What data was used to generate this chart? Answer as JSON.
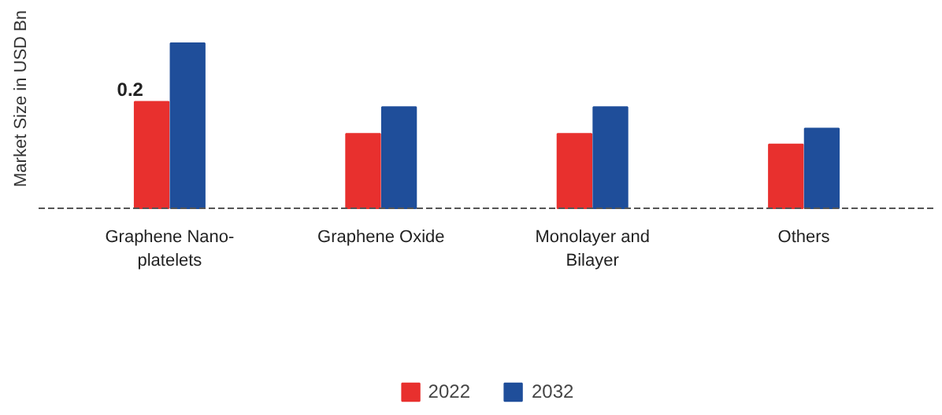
{
  "chart_data": {
    "type": "bar",
    "ylabel": "Market Size in USD Bn",
    "categories": [
      "Graphene Nano-platelets",
      "Graphene Oxide",
      "Monolayer and Bilayer",
      "Others"
    ],
    "series": [
      {
        "name": "2022",
        "color": "#e8302e",
        "values": [
          0.2,
          0.14,
          0.14,
          0.12
        ],
        "value_labels": [
          "0.2",
          null,
          null,
          null
        ]
      },
      {
        "name": "2032",
        "color": "#1f4e9a",
        "values": [
          0.31,
          0.19,
          0.19,
          0.15
        ]
      }
    ],
    "legend": "bottom"
  }
}
